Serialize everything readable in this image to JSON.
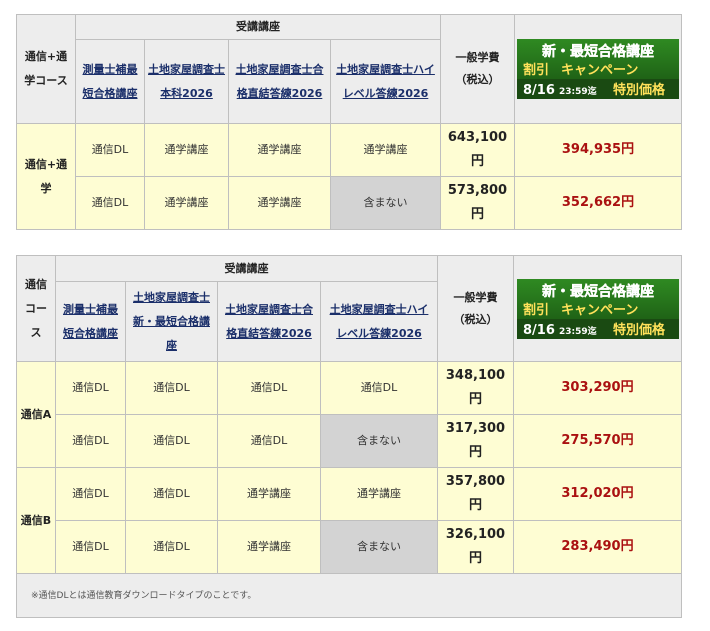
{
  "t1": {
    "course_header": "通信+通学コース",
    "course_group": "受講講座",
    "courses": [
      {
        "label": "測量士補最短合格講座"
      },
      {
        "label": "土地家屋調査士本科2026"
      },
      {
        "label": "土地家屋調査士合格直結答練2026"
      },
      {
        "label": "土地家屋調査士ハイレベル答練2026"
      }
    ],
    "general_fee_header": "一般学費",
    "tax_header": "（税込）",
    "banner": {
      "line1": "新・最短合格講座",
      "line2_a": "割引",
      "line2_b": "キャンペーン",
      "date": "8/16",
      "time": "23:59迄",
      "special": "特別価格"
    },
    "rows": [
      {
        "group": "通信+通学",
        "cells": [
          "通信DL",
          "通学講座",
          "通学講座",
          "通学講座"
        ],
        "fee": "643,100円",
        "price": "394,935円"
      },
      {
        "group": "",
        "cells": [
          "通信DL",
          "通学講座",
          "通学講座",
          "含まない"
        ],
        "fee": "573,800円",
        "price": "352,662円"
      }
    ]
  },
  "t2": {
    "course_header": "通信コース",
    "course_group": "受講講座",
    "courses": [
      {
        "label": "測量士補最短合格講座"
      },
      {
        "label": "土地家屋調査士新・最短合格講座"
      },
      {
        "label": "土地家屋調査士合格直結答練2026"
      },
      {
        "label": "土地家屋調査士ハイレベル答練2026"
      }
    ],
    "general_fee_header": "一般学費",
    "tax_header": "（税込）",
    "banner": {
      "line1": "新・最短合格講座",
      "line2_a": "割引",
      "line2_b": "キャンペーン",
      "date": "8/16",
      "time": "23:59迄",
      "special": "特別価格"
    },
    "group_a": "通信A",
    "group_b": "通信B",
    "rows": [
      {
        "cells": [
          "通信DL",
          "通信DL",
          "通信DL",
          "通信DL"
        ],
        "fee": "348,100円",
        "price": "303,290円"
      },
      {
        "cells": [
          "通信DL",
          "通信DL",
          "通信DL",
          "含まない"
        ],
        "fee": "317,300円",
        "price": "275,570円"
      },
      {
        "cells": [
          "通信DL",
          "通信DL",
          "通学講座",
          "通学講座"
        ],
        "fee": "357,800円",
        "price": "312,020円"
      },
      {
        "cells": [
          "通信DL",
          "通信DL",
          "通学講座",
          "含まない"
        ],
        "fee": "326,100円",
        "price": "283,490円"
      }
    ],
    "note": "※通信DLとは通信教育ダウンロードタイプのことです。"
  },
  "colors": {
    "header_bg": "#ededed",
    "cell_bg": "#fefdd3",
    "not_included_bg": "#d3d3d3",
    "price_red": "#aa1111",
    "link_navy": "#1b2f6a",
    "banner_green": "#1f6b16"
  }
}
